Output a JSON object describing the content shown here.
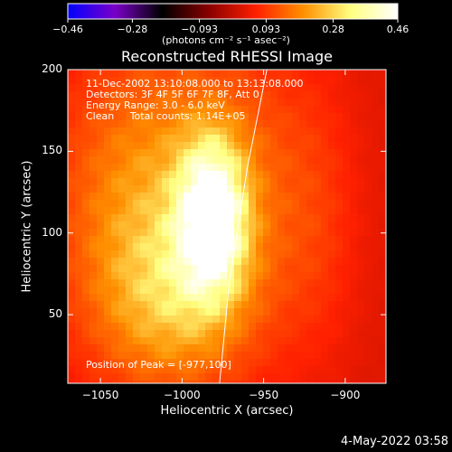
{
  "chart_data": {
    "type": "heatmap",
    "title": "Reconstructed RHESSI Image",
    "xlabel": "Heliocentric X (arcsec)",
    "ylabel": "Heliocentric Y (arcsec)",
    "xlim": [
      -1070,
      -875
    ],
    "ylim": [
      8,
      200
    ],
    "x_ticks": [
      -1050,
      -1000,
      -950,
      -900
    ],
    "y_ticks": [
      50,
      100,
      150,
      200
    ],
    "x_tick_labels": [
      "−1050",
      "−1000",
      "−950",
      "−900"
    ],
    "y_tick_labels": [
      "50",
      "100",
      "150",
      "200"
    ],
    "colorbar": {
      "min": -0.46,
      "max": 0.46,
      "ticks": [
        -0.46,
        -0.28,
        -0.093,
        0.093,
        0.28,
        0.46
      ],
      "tick_labels": [
        "−0.46",
        "−0.28",
        "−0.093",
        "0.093",
        "0.28",
        "0.46"
      ],
      "unit_label": "(photons cm⁻² s⁻¹ asec⁻²)",
      "colors": [
        "#0000ff",
        "#7a00c8",
        "#000000",
        "#8a0000",
        "#ff2000",
        "#ff9000",
        "#ffff80",
        "#ffffff"
      ]
    },
    "annotations": [
      "11-Dec-2002 13:10:08.000 to 13:13:08.000",
      "Detectors: 3F 4F 5F 6F 7F 8F, Att 0",
      "Energy Range: 3.0 - 6.0 keV",
      "Clean     Total counts: 1.14E+05"
    ],
    "peak_label": "Position of Peak = [-977,100]",
    "peak": {
      "x": -977,
      "y": 100,
      "value": 0.46
    },
    "limb_curve": [
      [
        -948,
        200
      ],
      [
        -960,
        140
      ],
      [
        -971,
        70
      ],
      [
        -977,
        8
      ]
    ],
    "emission": {
      "background_level": 0.03,
      "blobs": [
        {
          "x": -982,
          "y": 110,
          "sx": 14,
          "sy": 32,
          "amp": 0.43
        },
        {
          "x": -1020,
          "y": 115,
          "sx": 40,
          "sy": 70,
          "amp": 0.2
        },
        {
          "x": -1005,
          "y": 60,
          "sx": 30,
          "sy": 35,
          "amp": 0.14
        },
        {
          "x": -950,
          "y": 120,
          "sx": 35,
          "sy": 70,
          "amp": 0.09
        },
        {
          "x": -915,
          "y": 100,
          "sx": 15,
          "sy": 60,
          "amp": 0.025
        }
      ]
    }
  },
  "footer": {
    "date": "4-May-2022 03:58"
  }
}
